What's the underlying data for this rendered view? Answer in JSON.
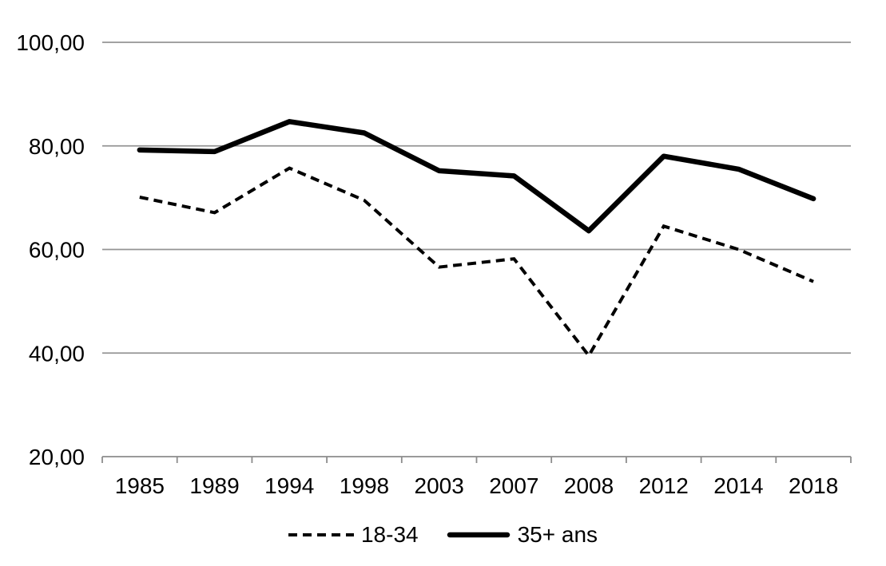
{
  "chart_data": {
    "type": "line",
    "title": "",
    "categories": [
      "1985",
      "1989",
      "1994",
      "1998",
      "2003",
      "2007",
      "2008",
      "2012",
      "2014",
      "2018"
    ],
    "series": [
      {
        "name": "18-34",
        "style": "dashed",
        "color": "#000000",
        "values": [
          70.1,
          67.1,
          75.7,
          69.5,
          56.6,
          58.2,
          39.5,
          64.5,
          60.0,
          53.8
        ]
      },
      {
        "name": "35+ ans",
        "style": "solid",
        "color": "#000000",
        "values": [
          79.2,
          78.9,
          84.7,
          82.5,
          75.2,
          74.2,
          63.6,
          78.0,
          75.5,
          69.8
        ]
      }
    ],
    "y_axis": {
      "min": 20,
      "max": 100,
      "step": 20,
      "ticks": [
        {
          "v": 20,
          "label": "20,00"
        },
        {
          "v": 40,
          "label": "40,00"
        },
        {
          "v": 60,
          "label": "60,00"
        },
        {
          "v": 80,
          "label": "80,00"
        },
        {
          "v": 100,
          "label": "100,00"
        }
      ]
    },
    "x_axis": {
      "tick_labels": [
        "1985",
        "1989",
        "1994",
        "1998",
        "2003",
        "2007",
        "2008",
        "2012",
        "2014",
        "2018"
      ]
    },
    "grid": true,
    "legend_position": "bottom",
    "colors": {
      "line": "#000000",
      "gridline": "#949494",
      "axis": "#8c8c8c",
      "text": "#000000",
      "background": "#ffffff"
    }
  }
}
